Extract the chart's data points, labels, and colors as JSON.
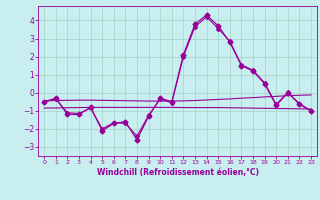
{
  "xlabel": "Windchill (Refroidissement éolien,°C)",
  "background_color": "#c8eef0",
  "grid_color": "#aad8cc",
  "line_color": "#990099",
  "x_values": [
    0,
    1,
    2,
    3,
    4,
    5,
    6,
    7,
    8,
    9,
    10,
    11,
    12,
    13,
    14,
    15,
    16,
    17,
    18,
    19,
    20,
    21,
    22,
    23
  ],
  "y_main": [
    -0.5,
    -0.3,
    -1.2,
    -1.2,
    -0.8,
    -2.1,
    -1.7,
    -1.6,
    -2.6,
    -1.3,
    -0.3,
    -0.5,
    2.1,
    3.8,
    4.3,
    3.7,
    2.8,
    1.5,
    1.2,
    0.5,
    -0.7,
    0.0,
    -0.6,
    -1.0
  ],
  "y_line2": [
    -0.5,
    -0.35,
    -1.1,
    -1.15,
    -0.85,
    -2.0,
    -1.65,
    -1.7,
    -2.4,
    -1.25,
    -0.35,
    -0.55,
    2.0,
    3.65,
    4.2,
    3.55,
    2.85,
    1.55,
    1.25,
    0.55,
    -0.65,
    0.02,
    -0.65,
    -1.0
  ],
  "y_trend1": [
    -0.45,
    -0.43,
    -0.42,
    -0.41,
    -0.41,
    -0.42,
    -0.43,
    -0.44,
    -0.45,
    -0.46,
    -0.46,
    -0.46,
    -0.45,
    -0.43,
    -0.4,
    -0.37,
    -0.34,
    -0.3,
    -0.27,
    -0.23,
    -0.2,
    -0.16,
    -0.14,
    -0.12
  ],
  "y_trend2": [
    -0.85,
    -0.84,
    -0.83,
    -0.82,
    -0.81,
    -0.81,
    -0.81,
    -0.81,
    -0.81,
    -0.81,
    -0.81,
    -0.81,
    -0.82,
    -0.82,
    -0.82,
    -0.82,
    -0.83,
    -0.84,
    -0.85,
    -0.86,
    -0.87,
    -0.88,
    -0.89,
    -0.9
  ],
  "ylim": [
    -3.5,
    4.8
  ],
  "yticks": [
    -3,
    -2,
    -1,
    0,
    1,
    2,
    3,
    4
  ],
  "xticks": [
    0,
    1,
    2,
    3,
    4,
    5,
    6,
    7,
    8,
    9,
    10,
    11,
    12,
    13,
    14,
    15,
    16,
    17,
    18,
    19,
    20,
    21,
    22,
    23
  ]
}
